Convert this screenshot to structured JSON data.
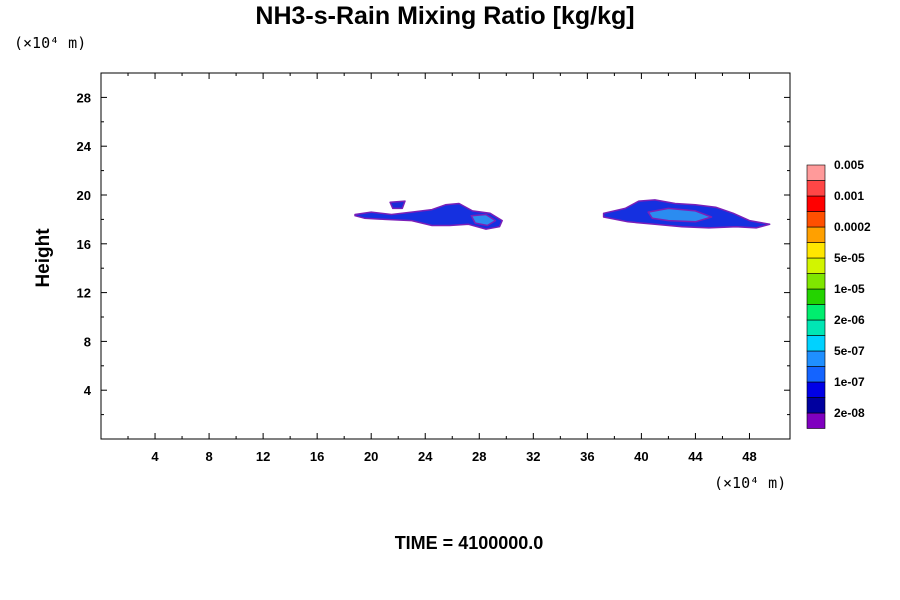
{
  "chart_data": {
    "type": "heatmap",
    "title": "NH3-s-Rain Mixing Ratio [kg/kg]",
    "ylabel": "Height",
    "x_unit": "(×10⁴ m)",
    "y_unit": "(×10⁴ m)",
    "xlim": [
      0,
      51
    ],
    "ylim": [
      0,
      30
    ],
    "x_ticks": [
      4,
      8,
      12,
      16,
      20,
      24,
      28,
      32,
      36,
      40,
      44,
      48
    ],
    "y_ticks": [
      4,
      8,
      12,
      16,
      20,
      24,
      28
    ],
    "footer": "TIME = 4100000.0",
    "colorbar": {
      "colors": [
        "#7f00bf",
        "#00009f",
        "#0000e6",
        "#1464ff",
        "#1f8fff",
        "#00d2ff",
        "#00e6b4",
        "#00ee6e",
        "#24d300",
        "#7fe600",
        "#d2f500",
        "#ffe600",
        "#ffa000",
        "#ff5000",
        "#ff0000",
        "#ff4646",
        "#ff9a9a"
      ],
      "labels": [
        "2e-08",
        "1e-07",
        "5e-07",
        "2e-06",
        "1e-05",
        "5e-05",
        "0.0002",
        "0.001",
        "0.005"
      ]
    },
    "features": [
      {
        "name": "left-cloud",
        "level": "5e-07",
        "polygon": [
          [
            18.8,
            18.4
          ],
          [
            20.0,
            18.6
          ],
          [
            21.5,
            18.4
          ],
          [
            23.0,
            18.6
          ],
          [
            24.5,
            18.8
          ],
          [
            25.5,
            19.2
          ],
          [
            26.5,
            19.3
          ],
          [
            27.5,
            18.7
          ],
          [
            28.8,
            18.5
          ],
          [
            29.7,
            17.9
          ],
          [
            29.5,
            17.4
          ],
          [
            28.5,
            17.2
          ],
          [
            27.2,
            17.6
          ],
          [
            25.8,
            17.5
          ],
          [
            24.5,
            17.5
          ],
          [
            23.0,
            17.9
          ],
          [
            21.0,
            18.0
          ],
          [
            19.5,
            18.1
          ],
          [
            18.8,
            18.3
          ]
        ]
      },
      {
        "name": "left-cloud-core",
        "level": "5e-07",
        "polygon": [
          [
            27.4,
            18.3
          ],
          [
            28.5,
            18.4
          ],
          [
            29.2,
            17.9
          ],
          [
            28.6,
            17.5
          ],
          [
            27.7,
            17.7
          ]
        ]
      },
      {
        "name": "left-cloud-blob",
        "level": "1e-07",
        "polygon": [
          [
            21.4,
            19.4
          ],
          [
            22.5,
            19.5
          ],
          [
            22.3,
            18.9
          ],
          [
            21.6,
            18.9
          ]
        ]
      },
      {
        "name": "right-cloud",
        "level": "5e-07",
        "polygon": [
          [
            37.2,
            18.5
          ],
          [
            38.8,
            18.9
          ],
          [
            39.8,
            19.5
          ],
          [
            41.0,
            19.6
          ],
          [
            42.5,
            19.3
          ],
          [
            44.0,
            19.2
          ],
          [
            45.5,
            19.0
          ],
          [
            46.8,
            18.5
          ],
          [
            48.0,
            17.9
          ],
          [
            49.5,
            17.6
          ],
          [
            48.5,
            17.3
          ],
          [
            47.0,
            17.4
          ],
          [
            45.0,
            17.3
          ],
          [
            43.0,
            17.4
          ],
          [
            41.0,
            17.6
          ],
          [
            39.0,
            17.8
          ],
          [
            37.2,
            18.2
          ]
        ]
      },
      {
        "name": "right-cloud-core",
        "level": "2e-06",
        "polygon": [
          [
            40.5,
            18.6
          ],
          [
            42.0,
            18.9
          ],
          [
            44.0,
            18.7
          ],
          [
            45.2,
            18.2
          ],
          [
            44.0,
            17.8
          ],
          [
            42.0,
            17.9
          ],
          [
            40.8,
            18.1
          ]
        ]
      }
    ]
  }
}
